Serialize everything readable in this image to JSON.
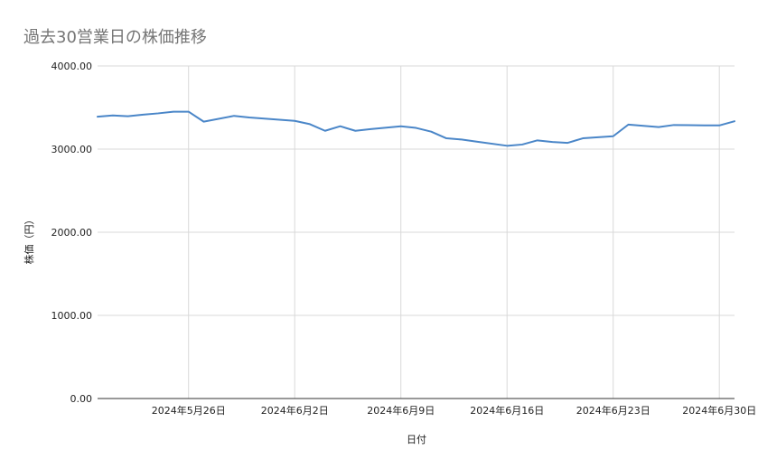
{
  "chart_data": {
    "type": "line",
    "title": "過去30営業日の株価推移",
    "xlabel": "日付",
    "ylabel": "株価（円）",
    "ylim": [
      0,
      4000
    ],
    "yticks": [
      "4000.00",
      "3000.00",
      "2000.00",
      "1000.00",
      "0.00"
    ],
    "xlim": [
      "2024-05-20",
      "2024-07-01"
    ],
    "xticks": [
      {
        "date": "2024-05-26",
        "label": "2024年5月26日"
      },
      {
        "date": "2024-06-02",
        "label": "2024年6月2日"
      },
      {
        "date": "2024-06-09",
        "label": "2024年6月9日"
      },
      {
        "date": "2024-06-16",
        "label": "2024年6月16日"
      },
      {
        "date": "2024-06-23",
        "label": "2024年6月23日"
      },
      {
        "date": "2024-06-30",
        "label": "2024年6月30日"
      }
    ],
    "grid": true,
    "legend": "none",
    "line_color": "#4a86c8",
    "series": [
      {
        "x": [
          "2024-05-20",
          "2024-05-21",
          "2024-05-22",
          "2024-05-23",
          "2024-05-24",
          "2024-05-25",
          "2024-05-26",
          "2024-05-27",
          "2024-05-29",
          "2024-05-30",
          "2024-06-02",
          "2024-06-03",
          "2024-06-04",
          "2024-06-05",
          "2024-06-06",
          "2024-06-07",
          "2024-06-09",
          "2024-06-10",
          "2024-06-11",
          "2024-06-12",
          "2024-06-13",
          "2024-06-14",
          "2024-06-16",
          "2024-06-17",
          "2024-06-18",
          "2024-06-19",
          "2024-06-20",
          "2024-06-21",
          "2024-06-23",
          "2024-06-24",
          "2024-06-25",
          "2024-06-26",
          "2024-06-27",
          "2024-06-29",
          "2024-06-30",
          "2024-07-01"
        ],
        "values": [
          3390,
          3405,
          3395,
          3415,
          3430,
          3450,
          3450,
          3330,
          3400,
          3380,
          3340,
          3300,
          3220,
          3275,
          3220,
          3240,
          3275,
          3255,
          3210,
          3130,
          3115,
          3090,
          3040,
          3055,
          3105,
          3085,
          3075,
          3130,
          3155,
          3295,
          3280,
          3265,
          3290,
          3285,
          3285,
          3335
        ]
      }
    ]
  }
}
